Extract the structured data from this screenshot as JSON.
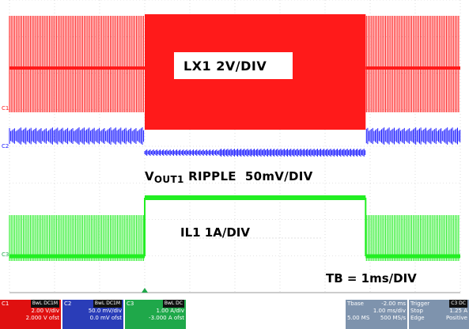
{
  "chart_data": {
    "type": "line",
    "title": "",
    "annotations": {
      "lx1": "LX1 2V/DIV",
      "vout_main": "V",
      "vout_sub": "OUT1",
      "vout_rest": " RIPPLE  50mV/DIV",
      "il1": "IL1 1A/DIV",
      "tb": "TB = 1ms/DIV"
    },
    "channel_markers": {
      "c1": "C1",
      "c2": "C2",
      "c3": "C3"
    },
    "time_axis": {
      "unit": "ms",
      "per_div": 1,
      "divisions": 10,
      "range": [
        -5,
        5
      ]
    },
    "burst_window_ms": [
      -2.0,
      2.9
    ],
    "series": [
      {
        "name": "LX1",
        "color": "#ff1a1a"
      },
      {
        "name": "VOUT1",
        "color": "#1a1aff"
      },
      {
        "name": "IL1",
        "color": "#22ee22"
      }
    ],
    "grid": true
  },
  "status": {
    "c1": {
      "tag": "C1",
      "mode": "BwL DC1M",
      "scale": "2.00 V/div",
      "offset": "2.000 V ofst"
    },
    "c2": {
      "tag": "C2",
      "mode": "BwL DC1M",
      "scale": "50.0 mV/div",
      "offset": "0.0 mV ofst"
    },
    "c3": {
      "tag": "C3",
      "mode": "BwL DC",
      "scale": "1.00 A/div",
      "offset": "-3.000 A ofst"
    },
    "tbase": {
      "label": "Tbase",
      "delay": "-2.00 ms",
      "per_div": "1.00 ms/div",
      "samples": "5.00 MS",
      "rate": "500 MS/s"
    },
    "trigger": {
      "label": "Trigger",
      "chip": "C3 DC",
      "mode": "Stop",
      "level": "1.25 A",
      "type": "Edge",
      "slope": "Positive"
    }
  },
  "colors": {
    "lx1": "#ff1a1a",
    "vout": "#1a1aff",
    "il": "#22ee22",
    "grid": "#c8c8c8"
  }
}
